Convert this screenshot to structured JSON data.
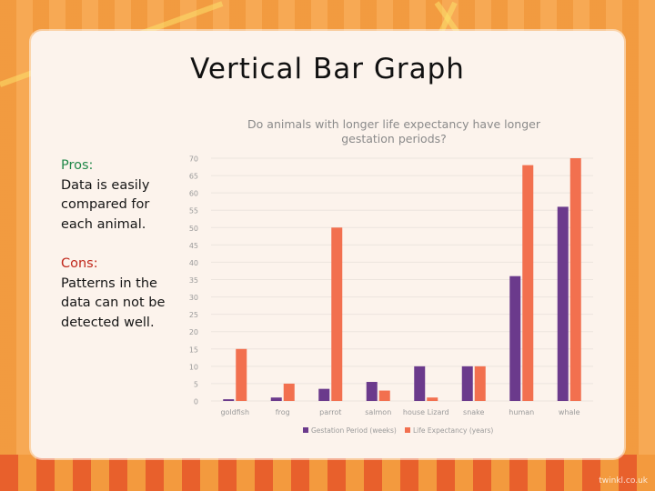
{
  "slide": {
    "title": "Vertical Bar Graph",
    "pros_heading": "Pros:",
    "pros_text": "Data is easily compared for each animal.",
    "cons_heading": "Cons:",
    "cons_text": "Patterns in the data can not be detected well.",
    "watermark": "twinkl.co.uk"
  },
  "colors": {
    "gestation": "#6b3a8c",
    "life": "#f2704f",
    "pros": "#22884a",
    "cons": "#c0271b"
  },
  "chart_data": {
    "type": "bar",
    "title": "Do animals with longer life expectancy have longer gestation periods?",
    "categories": [
      "goldfish",
      "frog",
      "parrot",
      "salmon",
      "house Lizard",
      "snake",
      "human",
      "whale"
    ],
    "series": [
      {
        "name": "Gestation Period (weeks)",
        "values": [
          0.5,
          1,
          3.5,
          5.5,
          10,
          10,
          36,
          56
        ]
      },
      {
        "name": "Life Expectancy (years)",
        "values": [
          15,
          5,
          50,
          3,
          1,
          10,
          68,
          70
        ]
      }
    ],
    "yticks": [
      0,
      5,
      10,
      15,
      20,
      25,
      30,
      35,
      40,
      45,
      50,
      55,
      60,
      65,
      70
    ],
    "ylim": [
      0,
      70
    ],
    "grid": true,
    "legend": "bottom"
  }
}
